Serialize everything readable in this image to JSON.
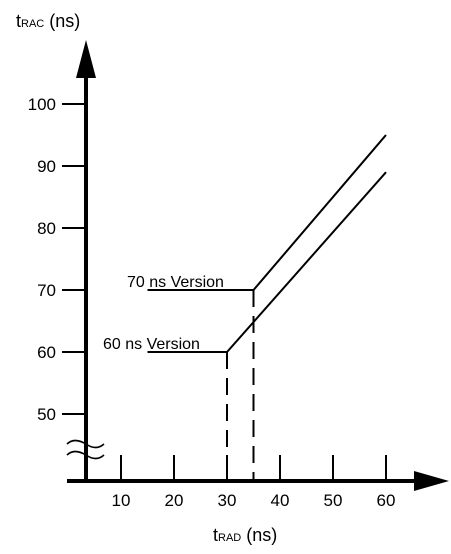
{
  "chart_data": {
    "type": "line",
    "ylabel": {
      "main": "t",
      "sub": "RAC",
      "unit": " (ns)"
    },
    "xlabel": {
      "main": "t",
      "sub": "RAD",
      "unit": " (ns)"
    },
    "x_ticks": [
      10,
      20,
      30,
      40,
      50,
      60
    ],
    "y_ticks": [
      50,
      60,
      70,
      80,
      90,
      100
    ],
    "xlim": [
      0,
      66
    ],
    "ylim": [
      40,
      108
    ],
    "axis_break": "y",
    "grid": false,
    "series": [
      {
        "name": "60 ns Version",
        "points": [
          [
            15,
            60
          ],
          [
            30,
            60
          ],
          [
            60,
            89
          ]
        ],
        "knee_x": 30
      },
      {
        "name": "70 ns Version",
        "points": [
          [
            15,
            70
          ],
          [
            35,
            70
          ],
          [
            60,
            95
          ]
        ],
        "knee_x": 35
      }
    ]
  }
}
